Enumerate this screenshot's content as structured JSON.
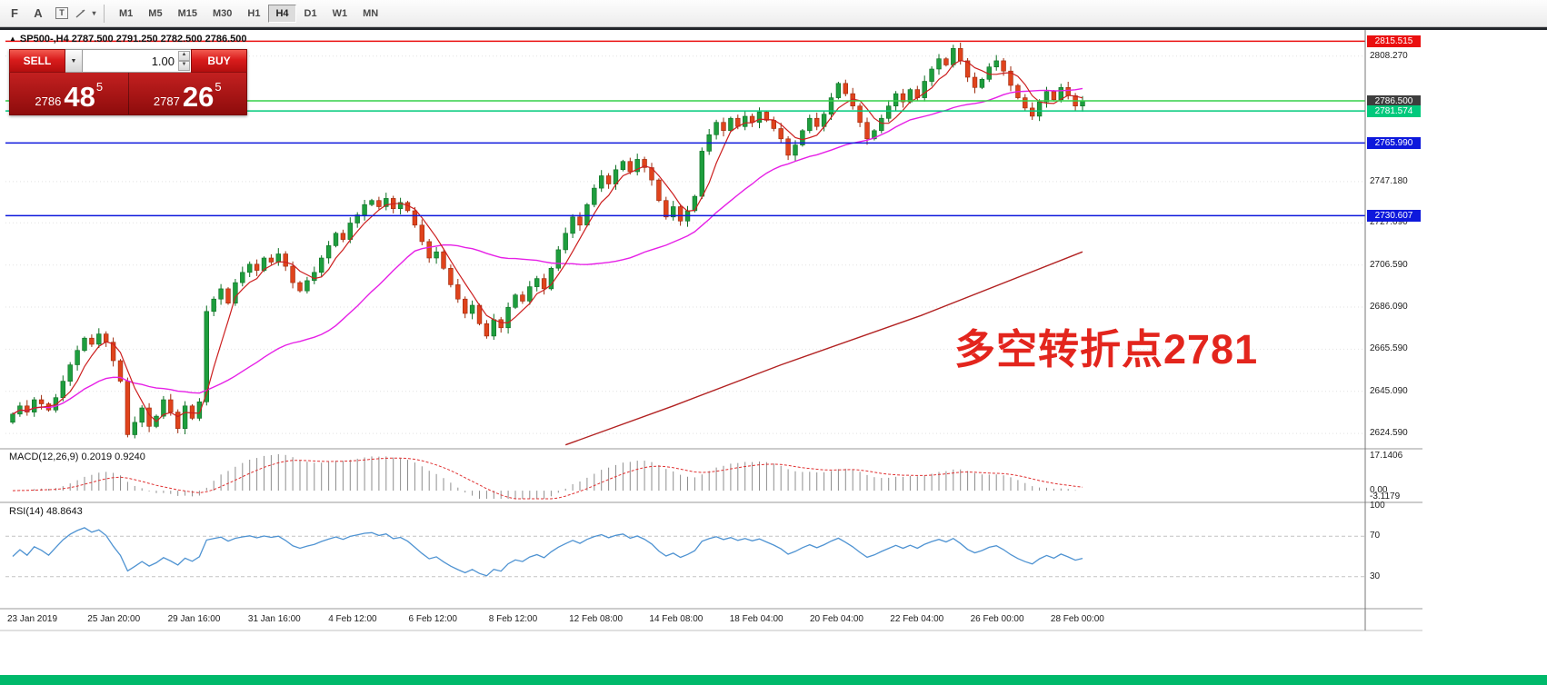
{
  "toolbar": {
    "tools": [
      {
        "name": "fibonacci-icon",
        "glyph": "F"
      },
      {
        "name": "text-tool-icon",
        "glyph": "A"
      },
      {
        "name": "text-label-icon",
        "glyph": "T"
      },
      {
        "name": "arrow-tools-icon",
        "glyph": ""
      }
    ],
    "timeframes": [
      "M1",
      "M5",
      "M15",
      "M30",
      "H1",
      "H4",
      "D1",
      "W1",
      "MN"
    ],
    "active_timeframe": "H4"
  },
  "trade_panel": {
    "sell_label": "SELL",
    "buy_label": "BUY",
    "volume": "1.00",
    "icons": {
      "dropdown": "▼",
      "spin_up": "▲",
      "spin_down": "▼"
    },
    "sell_price": {
      "small": "2786",
      "big": "48",
      "sup": "5"
    },
    "buy_price": {
      "small": "2787",
      "big": "26",
      "sup": "5"
    }
  },
  "chart_data": {
    "type": "candlestick",
    "symbol": "SP500-",
    "timeframe": "H4",
    "collapse_marker": "▲",
    "ohlc_line": "SP500-,H4  2787.500 2791.250 2782.500 2786.500",
    "open": "2787.500",
    "high": "2791.250",
    "low": "2782.500",
    "close": "2786.500",
    "ylim": [
      2618,
      2821
    ],
    "price_ticks": [
      "2808.270",
      "2747.180",
      "2727.090",
      "2706.590",
      "2686.090",
      "2665.590",
      "2645.090",
      "2624.590"
    ],
    "levels": [
      {
        "label": "2815.515",
        "price": 2815.515,
        "color": "#ea0f0f",
        "badge": "#ea0f0f"
      },
      {
        "label": "2786.500",
        "price": 2786.5,
        "color": "#35d04a",
        "badge": "#3d3d3d"
      },
      {
        "label": "2781.574",
        "price": 2781.574,
        "color": "#00c97c",
        "badge": "#00c97c"
      },
      {
        "label": "2765.990",
        "price": 2765.99,
        "color": "#0d18dc",
        "badge": "#0d18dc"
      },
      {
        "label": "2730.607",
        "price": 2730.607,
        "color": "#0d18dc",
        "badge": "#0d18dc"
      }
    ],
    "x_labels": [
      "23 Jan 2019",
      "25 Jan 20:00",
      "29 Jan 16:00",
      "31 Jan 16:00",
      "4 Feb 12:00",
      "6 Feb 12:00",
      "8 Feb 12:00",
      "12 Feb 08:00",
      "14 Feb 08:00",
      "18 Feb 04:00",
      "20 Feb 04:00",
      "22 Feb 04:00",
      "26 Feb 00:00",
      "28 Feb 00:00"
    ],
    "closes": [
      2634,
      2638,
      2635,
      2641,
      2639,
      2636,
      2642,
      2650,
      2658,
      2665,
      2671,
      2668,
      2673,
      2669,
      2660,
      2650,
      2624,
      2630,
      2637,
      2628,
      2633,
      2641,
      2635,
      2627,
      2638,
      2632,
      2640,
      2684,
      2690,
      2695,
      2688,
      2698,
      2703,
      2707,
      2704,
      2710,
      2708,
      2712,
      2706,
      2698,
      2694,
      2699,
      2703,
      2710,
      2716,
      2722,
      2719,
      2727,
      2731,
      2736,
      2738,
      2735,
      2739,
      2734,
      2737,
      2733,
      2726,
      2718,
      2710,
      2713,
      2705,
      2697,
      2690,
      2683,
      2687,
      2678,
      2672,
      2680,
      2676,
      2686,
      2692,
      2689,
      2696,
      2700,
      2695,
      2705,
      2714,
      2722,
      2730,
      2726,
      2736,
      2744,
      2750,
      2746,
      2753,
      2757,
      2752,
      2758,
      2754,
      2748,
      2738,
      2730,
      2735,
      2728,
      2733,
      2740,
      2762,
      2770,
      2776,
      2772,
      2778,
      2774,
      2779,
      2776,
      2781,
      2777,
      2773,
      2768,
      2760,
      2765,
      2772,
      2778,
      2774,
      2780,
      2788,
      2795,
      2790,
      2784,
      2776,
      2768,
      2772,
      2778,
      2784,
      2790,
      2786,
      2792,
      2788,
      2796,
      2802,
      2807,
      2804,
      2812,
      2806,
      2798,
      2793,
      2797,
      2803,
      2806,
      2801,
      2794,
      2788,
      2783,
      2779,
      2786,
      2791,
      2787,
      2793,
      2789,
      2784,
      2786.5
    ],
    "ma_long": [
      [
        0.52,
        2619
      ],
      [
        0.62,
        2638
      ],
      [
        0.72,
        2658
      ],
      [
        0.85,
        2682
      ],
      [
        1.0,
        2713
      ]
    ],
    "annotation": {
      "text": "多空转折点2781",
      "color": "#e3251d"
    },
    "colors": {
      "up": "#1e9e3e",
      "up_edge": "#0c6e22",
      "down": "#e0431c",
      "down_edge": "#9c2a0c",
      "ma_fast": "#cc1f1f",
      "ma_mid": "#e620e6",
      "ma_long": "#b22222",
      "rsi": "#4f93d2",
      "macd_hist": "#8e8e8e",
      "macd_signal": "#e03131"
    },
    "macd": {
      "header": "MACD(12,26,9) 0.2019 0.9240",
      "range": [
        -4,
        18
      ],
      "axis_labels": [
        {
          "v": 17.1406,
          "label": "17.1406"
        },
        {
          "v": 0,
          "label": "0.00"
        },
        {
          "v": -3.1179,
          "label": "-3.1179"
        }
      ]
    },
    "rsi": {
      "header": "RSI(14) 48.8643",
      "levels": [
        70,
        30
      ],
      "axis_labels": [
        {
          "v": 100,
          "label": "100"
        },
        {
          "v": 70,
          "label": "70"
        },
        {
          "v": 30,
          "label": "30"
        }
      ]
    }
  },
  "bottom_bar": {
    "color": "#00b96b"
  }
}
